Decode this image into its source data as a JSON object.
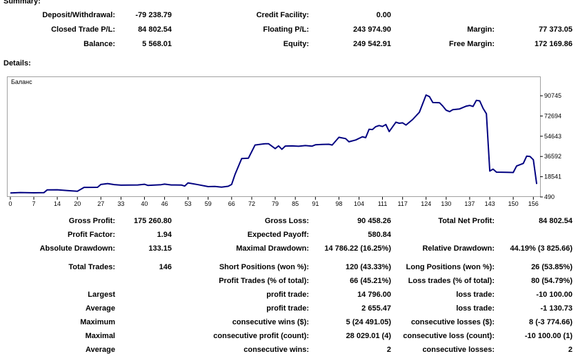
{
  "summary": {
    "title": "Summary:",
    "deposit_label": "Deposit/Withdrawal:",
    "deposit_value": "-79 238.79",
    "credit_label": "Credit Facility:",
    "credit_value": "0.00",
    "closed_label": "Closed Trade P/L:",
    "closed_value": "84 802.54",
    "floating_label": "Floating P/L:",
    "floating_value": "243 974.90",
    "margin_label": "Margin:",
    "margin_value": "77 373.05",
    "balance_label": "Balance:",
    "balance_value": "5 568.01",
    "equity_label": "Equity:",
    "equity_value": "249 542.91",
    "free_margin_label": "Free Margin:",
    "free_margin_value": "172 169.86"
  },
  "details": {
    "title": "Details:",
    "gross_profit_label": "Gross Profit:",
    "gross_profit_value": "175 260.80",
    "gross_loss_label": "Gross Loss:",
    "gross_loss_value": "90 458.26",
    "total_net_label": "Total Net Profit:",
    "total_net_value": "84 802.54",
    "profit_factor_label": "Profit Factor:",
    "profit_factor_value": "1.94",
    "expected_label": "Expected Payoff:",
    "expected_value": "580.84",
    "abs_dd_label": "Absolute Drawdown:",
    "abs_dd_value": "133.15",
    "max_dd_label": "Maximal Drawdown:",
    "max_dd_value": "14 786.22 (16.25%)",
    "rel_dd_label": "Relative Drawdown:",
    "rel_dd_value": "44.19% (3 825.66)",
    "total_trades_label": "Total Trades:",
    "total_trades_value": "146",
    "short_label": "Short Positions (won %):",
    "short_value": "120 (43.33%)",
    "long_label": "Long Positions (won %):",
    "long_value": "26 (53.85%)",
    "profit_trades_label": "Profit Trades (% of total):",
    "profit_trades_value": "66 (45.21%)",
    "loss_trades_label": "Loss trades (% of total):",
    "loss_trades_value": "80 (54.79%)",
    "largest_label": "Largest",
    "largest_profit_label": "profit trade:",
    "largest_profit_value": "14 796.00",
    "largest_loss_label": "loss trade:",
    "largest_loss_value": "-10 100.00",
    "average_label": "Average",
    "avg_profit_label": "profit trade:",
    "avg_profit_value": "2 655.47",
    "avg_loss_label": "loss trade:",
    "avg_loss_value": "-1 130.73",
    "maximum_label": "Maximum",
    "max_cons_wins_label": "consecutive wins ($):",
    "max_cons_wins_value": "5 (24 491.05)",
    "max_cons_losses_label": "consecutive losses ($):",
    "max_cons_losses_value": "8 (-3 774.66)",
    "maximal_label": "Maximal",
    "maximal_profit_label": "consecutive profit (count):",
    "maximal_profit_value": "28 029.01 (4)",
    "maximal_loss_label": "consecutive loss (count):",
    "maximal_loss_value": "-10 100.00 (1)",
    "average2_label": "Average",
    "avg_cons_wins_label": "consecutive wins:",
    "avg_cons_wins_value": "2",
    "avg_cons_losses_label": "consecutive losses:",
    "avg_cons_losses_value": "2"
  },
  "chart_data": {
    "type": "line",
    "series_label": "Баланс",
    "line_color": "#000080",
    "grid": false,
    "xlim": [
      0,
      158
    ],
    "ylim": [
      490,
      100000
    ],
    "x_ticks": [
      0,
      7,
      14,
      20,
      27,
      33,
      40,
      46,
      53,
      59,
      66,
      72,
      79,
      85,
      91,
      98,
      104,
      111,
      117,
      124,
      130,
      137,
      143,
      150,
      156
    ],
    "y_ticks": [
      90745,
      72694,
      54643,
      36592,
      18541,
      490
    ],
    "points": [
      [
        0,
        4000
      ],
      [
        3,
        4400
      ],
      [
        7,
        4200
      ],
      [
        10,
        4300
      ],
      [
        11,
        6800
      ],
      [
        14,
        6900
      ],
      [
        17,
        6200
      ],
      [
        20,
        5600
      ],
      [
        22,
        9000
      ],
      [
        26,
        9100
      ],
      [
        27,
        11600
      ],
      [
        29,
        12400
      ],
      [
        31,
        11500
      ],
      [
        33,
        11000
      ],
      [
        38,
        11200
      ],
      [
        40,
        11800
      ],
      [
        41,
        10800
      ],
      [
        45,
        11400
      ],
      [
        46,
        11900
      ],
      [
        48,
        11200
      ],
      [
        51,
        11100
      ],
      [
        52,
        10200
      ],
      [
        53,
        13000
      ],
      [
        56,
        11400
      ],
      [
        59,
        9700
      ],
      [
        61,
        9800
      ],
      [
        63,
        9200
      ],
      [
        65,
        10000
      ],
      [
        66,
        11600
      ],
      [
        67,
        20500
      ],
      [
        69,
        34700
      ],
      [
        71,
        35000
      ],
      [
        73,
        46800
      ],
      [
        76,
        48000
      ],
      [
        77,
        48000
      ],
      [
        79,
        43600
      ],
      [
        80,
        46000
      ],
      [
        81,
        43000
      ],
      [
        82,
        45900
      ],
      [
        84,
        46000
      ],
      [
        86,
        45700
      ],
      [
        88,
        46300
      ],
      [
        90,
        45800
      ],
      [
        91,
        47000
      ],
      [
        93,
        47300
      ],
      [
        95,
        47500
      ],
      [
        96,
        46800
      ],
      [
        98,
        53700
      ],
      [
        100,
        52500
      ],
      [
        101,
        49700
      ],
      [
        103,
        51300
      ],
      [
        105,
        54200
      ],
      [
        106,
        53400
      ],
      [
        107,
        60800
      ],
      [
        108,
        60600
      ],
      [
        109,
        63200
      ],
      [
        110,
        64200
      ],
      [
        111,
        63300
      ],
      [
        112,
        65100
      ],
      [
        113,
        58800
      ],
      [
        115,
        67200
      ],
      [
        116,
        66200
      ],
      [
        117,
        66600
      ],
      [
        118,
        64600
      ],
      [
        120,
        69600
      ],
      [
        122,
        76000
      ],
      [
        124,
        91400
      ],
      [
        125,
        90000
      ],
      [
        126,
        84700
      ],
      [
        128,
        84500
      ],
      [
        129,
        81500
      ],
      [
        130,
        77800
      ],
      [
        131,
        76600
      ],
      [
        132,
        78400
      ],
      [
        134,
        79000
      ],
      [
        136,
        81500
      ],
      [
        137,
        82100
      ],
      [
        138,
        81200
      ],
      [
        139,
        86600
      ],
      [
        140,
        86200
      ],
      [
        141,
        79500
      ],
      [
        142,
        74700
      ],
      [
        143,
        23600
      ],
      [
        144,
        25300
      ],
      [
        145,
        22600
      ],
      [
        148,
        22400
      ],
      [
        150,
        22300
      ],
      [
        151,
        28100
      ],
      [
        153,
        30400
      ],
      [
        154,
        36900
      ],
      [
        155,
        36600
      ],
      [
        156,
        33600
      ],
      [
        157,
        12000
      ]
    ]
  }
}
